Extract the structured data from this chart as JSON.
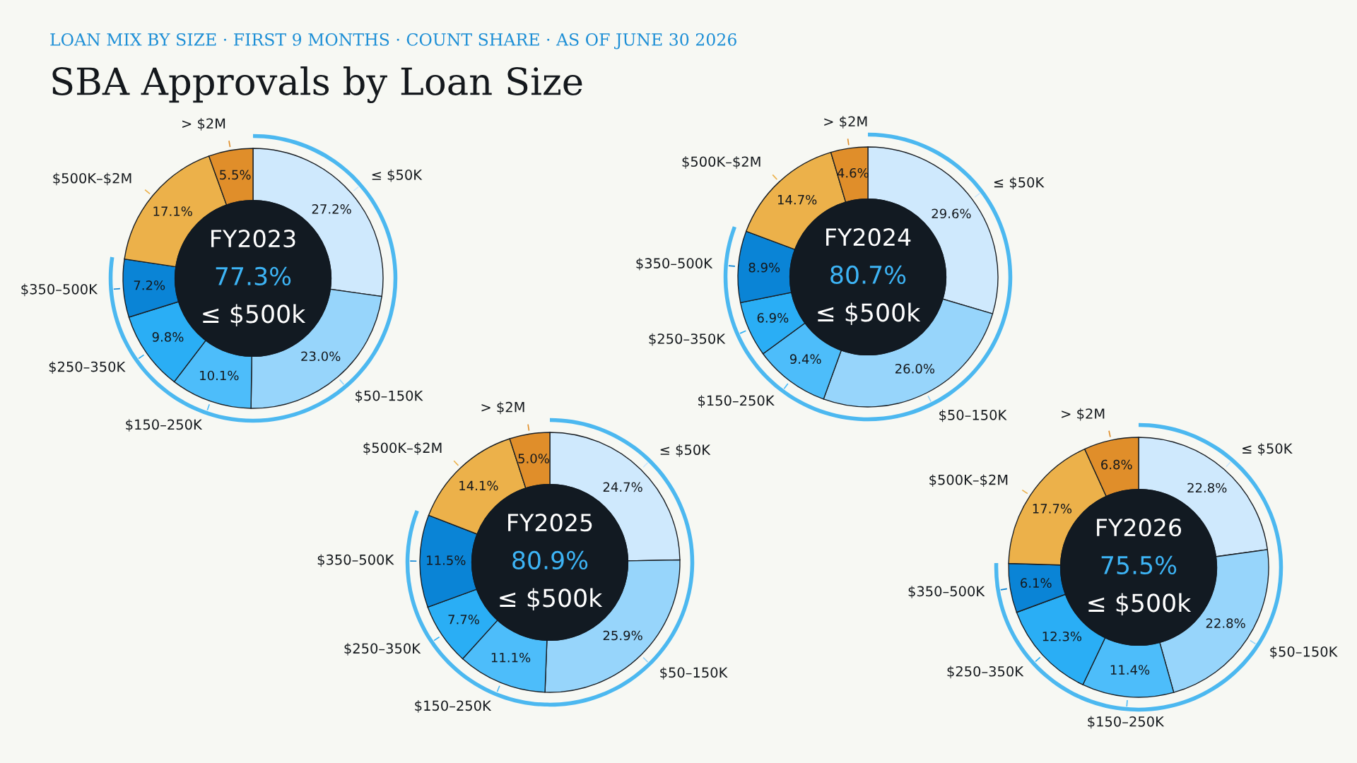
{
  "chart_data": [
    {
      "type": "other",
      "subtitle": "LOAN MIX BY SIZE · FIRST 9 MONTHS · COUNT SHARE · AS OF JUNE 30 2026",
      "title": "SBA Approvals by Loan Size"
    },
    {
      "type": "donut",
      "title": "FY2023",
      "annotations": [
        "77.3%",
        "≤ $500k"
      ],
      "categories": [
        "≤ $50K",
        "$50–150K",
        "$150–250K",
        "$250–350K",
        "$350–500K",
        "$500K–$2M",
        "> $2M"
      ],
      "values": [
        27.2,
        23.0,
        10.1,
        9.8,
        7.2,
        17.1,
        5.5
      ],
      "value_labels": [
        "27.2%",
        "23.0%",
        "10.1%",
        "9.8%",
        "7.2%",
        "17.1%",
        "5.5%"
      ],
      "colors": [
        "#cfe9fd",
        "#97d5fb",
        "#4dbdfa",
        "#2aaef5",
        "#0a84d6",
        "#ecb14a",
        "#e08e2a"
      ]
    },
    {
      "type": "donut",
      "title": "FY2024",
      "annotations": [
        "80.7%",
        "≤ $500k"
      ],
      "categories": [
        "≤ $50K",
        "$50–150K",
        "$150–250K",
        "$250–350K",
        "$350–500K",
        "$500K–$2M",
        "> $2M"
      ],
      "values": [
        29.6,
        26.0,
        9.4,
        6.9,
        8.9,
        14.7,
        4.6
      ],
      "value_labels": [
        "29.6%",
        "26.0%",
        "9.4%",
        "6.9%",
        "8.9%",
        "14.7%",
        "4.6%"
      ],
      "colors": [
        "#cfe9fd",
        "#97d5fb",
        "#4dbdfa",
        "#2aaef5",
        "#0a84d6",
        "#ecb14a",
        "#e08e2a"
      ]
    },
    {
      "type": "donut",
      "title": "FY2025",
      "annotations": [
        "80.9%",
        "≤ $500k"
      ],
      "categories": [
        "≤ $50K",
        "$50–150K",
        "$150–250K",
        "$250–350K",
        "$350–500K",
        "$500K–$2M",
        "> $2M"
      ],
      "values": [
        24.7,
        25.9,
        11.1,
        7.7,
        11.5,
        14.1,
        5.0
      ],
      "value_labels": [
        "24.7%",
        "25.9%",
        "11.1%",
        "7.7%",
        "11.5%",
        "14.1%",
        "5.0%"
      ],
      "colors": [
        "#cfe9fd",
        "#97d5fb",
        "#4dbdfa",
        "#2aaef5",
        "#0a84d6",
        "#ecb14a",
        "#e08e2a"
      ]
    },
    {
      "type": "donut",
      "title": "FY2026",
      "annotations": [
        "75.5%",
        "≤ $500k"
      ],
      "categories": [
        "≤ $50K",
        "$50–150K",
        "$150–250K",
        "$250–350K",
        "$350–500K",
        "$500K–$2M",
        "> $2M"
      ],
      "values": [
        22.8,
        22.8,
        11.4,
        12.3,
        6.1,
        17.7,
        6.8
      ],
      "value_labels": [
        "22.8%",
        "22.8%",
        "11.4%",
        "12.3%",
        "6.1%",
        "17.7%",
        "6.8%"
      ],
      "colors": [
        "#cfe9fd",
        "#97d5fb",
        "#4dbdfa",
        "#2aaef5",
        "#0a84d6",
        "#ecb14a",
        "#e08e2a"
      ]
    }
  ]
}
